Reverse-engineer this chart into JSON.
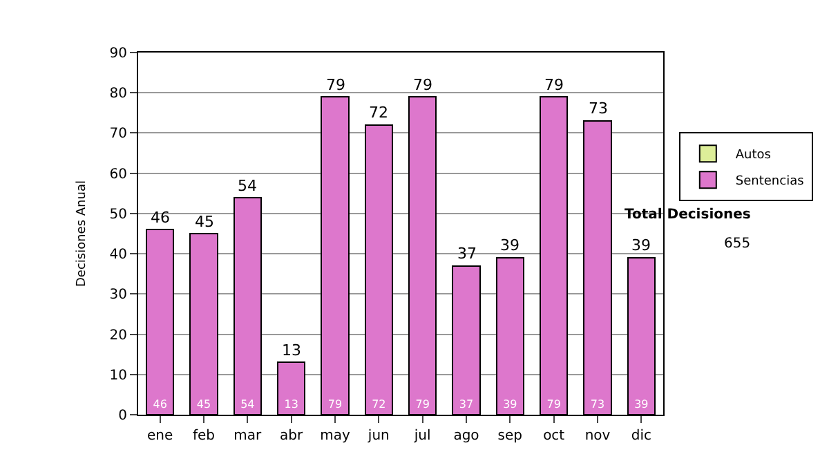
{
  "chart_data": {
    "type": "bar",
    "stacked": true,
    "ylabel": "Decisiones Anual",
    "categories": [
      "ene",
      "feb",
      "mar",
      "abr",
      "may",
      "jun",
      "jul",
      "ago",
      "sep",
      "oct",
      "nov",
      "dic"
    ],
    "series": [
      {
        "name": "Sentencias",
        "color": "#dd77cc",
        "values": [
          46,
          45,
          54,
          13,
          79,
          72,
          79,
          37,
          39,
          79,
          73,
          39
        ]
      },
      {
        "name": "Autos",
        "color": "#ddee99",
        "values": [
          null,
          null,
          null,
          null,
          null,
          null,
          null,
          null,
          null,
          null,
          null,
          null
        ]
      }
    ],
    "totals": [
      "46",
      "45",
      "54",
      "13",
      "79",
      "72",
      "79",
      "37",
      "39",
      "79",
      "73",
      "39"
    ],
    "data_labels": true,
    "ylim": [
      0,
      90
    ],
    "yticks": [
      0,
      10,
      20,
      30,
      40,
      50,
      60,
      70,
      80,
      90
    ],
    "grid": "y",
    "legend": "right",
    "annotations": [
      "Total Decisiones",
      "655"
    ]
  }
}
